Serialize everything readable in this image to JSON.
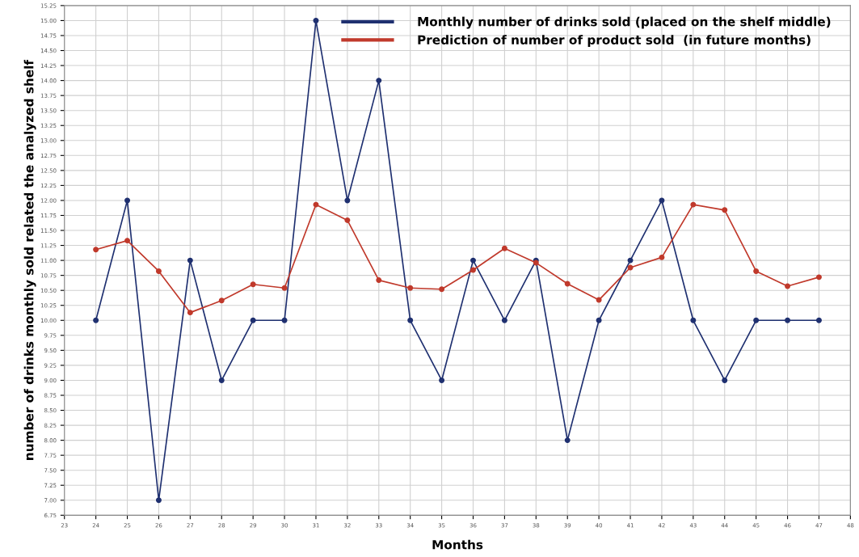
{
  "chart_data": {
    "type": "line",
    "xlabel": "Months",
    "ylabel": "number of drinks monthly sold related the analyzed shelf",
    "x": [
      24,
      25,
      26,
      27,
      28,
      29,
      30,
      31,
      32,
      33,
      34,
      35,
      36,
      37,
      38,
      39,
      40,
      41,
      42,
      43,
      44,
      45,
      46,
      47
    ],
    "series": [
      {
        "name": "Monthly number of drinks sold (placed on the shelf middle)",
        "color": "#1f3070",
        "values": [
          10,
          12,
          7,
          11,
          9,
          10,
          10,
          15,
          12,
          14,
          10,
          9,
          11,
          10,
          11,
          8,
          10,
          11,
          12,
          10,
          9,
          10,
          10,
          10
        ]
      },
      {
        "name": "Prediction of number of product sold  (in future months)",
        "color": "#c0392b",
        "values": [
          11.18,
          11.33,
          10.82,
          10.13,
          10.33,
          10.6,
          10.54,
          11.93,
          11.67,
          10.67,
          10.54,
          10.52,
          10.84,
          11.2,
          10.96,
          10.61,
          10.34,
          10.88,
          11.05,
          11.93,
          11.84,
          10.82,
          10.57,
          10.72
        ]
      }
    ],
    "xlim": [
      23,
      48
    ],
    "xticks": [
      23,
      24,
      25,
      26,
      27,
      28,
      29,
      30,
      31,
      32,
      33,
      34,
      35,
      36,
      37,
      38,
      39,
      40,
      41,
      42,
      43,
      44,
      45,
      46,
      47,
      48
    ],
    "ylim": [
      6.75,
      15.25
    ],
    "yticks": [
      {
        "value": 6.75,
        "label": "6.75"
      },
      {
        "value": 7,
        "label": "7.00"
      },
      {
        "value": 7.25,
        "label": "7.25"
      },
      {
        "value": 7.5,
        "label": "7.50"
      },
      {
        "value": 7.75,
        "label": "7.75"
      },
      {
        "value": 8,
        "label": "8.00"
      },
      {
        "value": 8.25,
        "label": "8.25"
      },
      {
        "value": 8.5,
        "label": "8.50"
      },
      {
        "value": 8.75,
        "label": "8.75"
      },
      {
        "value": 9,
        "label": "9.00"
      },
      {
        "value": 9.25,
        "label": "9.25"
      },
      {
        "value": 9.5,
        "label": "9.50"
      },
      {
        "value": 9.75,
        "label": "9.75"
      },
      {
        "value": 10,
        "label": "10.00"
      },
      {
        "value": 10.25,
        "label": "10.25"
      },
      {
        "value": 10.5,
        "label": "10.50"
      },
      {
        "value": 10.75,
        "label": "10.75"
      },
      {
        "value": 11,
        "label": "11.00"
      },
      {
        "value": 11.25,
        "label": "11.25"
      },
      {
        "value": 11.5,
        "label": "11.50"
      },
      {
        "value": 11.75,
        "label": "11.75"
      },
      {
        "value": 12,
        "label": "12.00"
      },
      {
        "value": 12.25,
        "label": "12.25"
      },
      {
        "value": 12.5,
        "label": "12.50"
      },
      {
        "value": 12.75,
        "label": "12.75"
      },
      {
        "value": 13,
        "label": "13.00"
      },
      {
        "value": 13.25,
        "label": "13.25"
      },
      {
        "value": 13.5,
        "label": "13.50"
      },
      {
        "value": 13.75,
        "label": "13.75"
      },
      {
        "value": 14,
        "label": "14.00"
      },
      {
        "value": 14.25,
        "label": "14.25"
      },
      {
        "value": 14.5,
        "label": "14.50"
      },
      {
        "value": 14.75,
        "label": "14.75"
      },
      {
        "value": 15,
        "label": "15.00"
      },
      {
        "value": 15.25,
        "label": "15.25"
      }
    ],
    "grid": true,
    "legend": "top",
    "marker": "circle",
    "line_style": "solid"
  }
}
